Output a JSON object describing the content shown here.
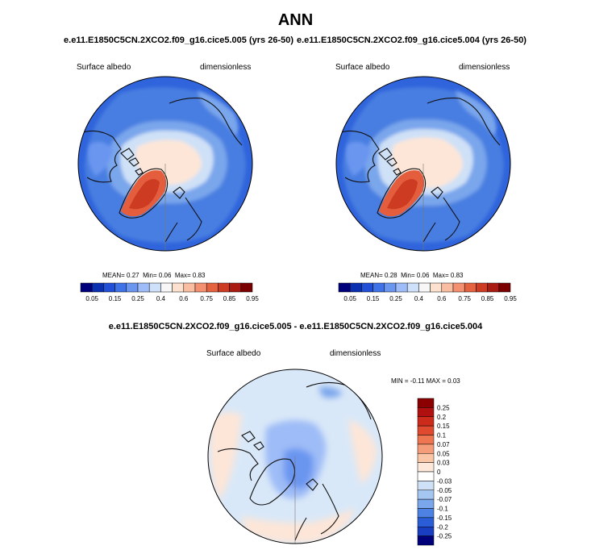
{
  "colors": {
    "ocean_base": "#2f64dc",
    "ice_base": "#fde6d8",
    "greenland": "#e45e3e",
    "diff_base": "#d9e8f8",
    "coast": "#111111"
  },
  "chart_data": [
    {
      "type": "heatmap",
      "projection": "north-polar-stereographic",
      "title": "e.e11.E1850C5CN.2XCO2.f09_g16.cice5.005 (yrs 26-50)",
      "variable": "Surface albedo",
      "units": "dimensionless",
      "stats": {
        "mean_label": "MEAN=",
        "mean": "0.27",
        "min_label": "Min=",
        "min": "0.06",
        "max_label": "Max=",
        "max": "0.83"
      },
      "colorbar": {
        "orientation": "horizontal",
        "levels": [
          "0.05",
          "0.15",
          "0.25",
          "0.4",
          "0.6",
          "0.75",
          "0.85",
          "0.95"
        ],
        "colors": [
          "#00007a",
          "#0a2fb0",
          "#2150d6",
          "#3f72e6",
          "#6b96f0",
          "#9ebcf7",
          "#cfe0fb",
          "#f7f7f7",
          "#fde1cf",
          "#f9bea2",
          "#f29070",
          "#e4623f",
          "#cc3b22",
          "#aa1c12",
          "#7a0000"
        ]
      }
    },
    {
      "type": "heatmap",
      "projection": "north-polar-stereographic",
      "title": "e.e11.E1850C5CN.2XCO2.f09_g16.cice5.004 (yrs 26-50)",
      "variable": "Surface albedo",
      "units": "dimensionless",
      "stats": {
        "mean_label": "MEAN=",
        "mean": "0.28",
        "min_label": "Min=",
        "min": "0.06",
        "max_label": "Max=",
        "max": "0.83"
      },
      "colorbar": {
        "orientation": "horizontal",
        "levels": [
          "0.05",
          "0.15",
          "0.25",
          "0.4",
          "0.6",
          "0.75",
          "0.85",
          "0.95"
        ],
        "colors": [
          "#00007a",
          "#0a2fb0",
          "#2150d6",
          "#3f72e6",
          "#6b96f0",
          "#9ebcf7",
          "#cfe0fb",
          "#f7f7f7",
          "#fde1cf",
          "#f9bea2",
          "#f29070",
          "#e4623f",
          "#cc3b22",
          "#aa1c12",
          "#7a0000"
        ]
      }
    },
    {
      "type": "heatmap",
      "projection": "north-polar-stereographic",
      "title": "e.e11.E1850C5CN.2XCO2.f09_g16.cice5.005 - e.e11.E1850C5CN.2XCO2.f09_g16.cice5.004",
      "variable": "Surface albedo",
      "units": "dimensionless",
      "stats": {
        "min_label": "MIN =",
        "min": "-0.11",
        "max_label": "MAX =",
        "max": "0.03"
      },
      "colorbar": {
        "orientation": "vertical",
        "levels": [
          "0.25",
          "0.2",
          "0.15",
          "0.1",
          "0.07",
          "0.05",
          "0.03",
          "0",
          "-0.03",
          "-0.05",
          "-0.07",
          "-0.1",
          "-0.15",
          "-0.2",
          "-0.25"
        ],
        "colors": [
          "#8b0000",
          "#b01010",
          "#cc2a1a",
          "#e04a2e",
          "#ee7650",
          "#f59d7a",
          "#fbc5a8",
          "#fde8da",
          "#ffffff",
          "#cfe1f7",
          "#a6c6f2",
          "#7aa6ec",
          "#4d82e2",
          "#2a5ed6",
          "#1a3ec0",
          "#00007a"
        ]
      }
    }
  ],
  "page": {
    "main_title": "ANN"
  }
}
